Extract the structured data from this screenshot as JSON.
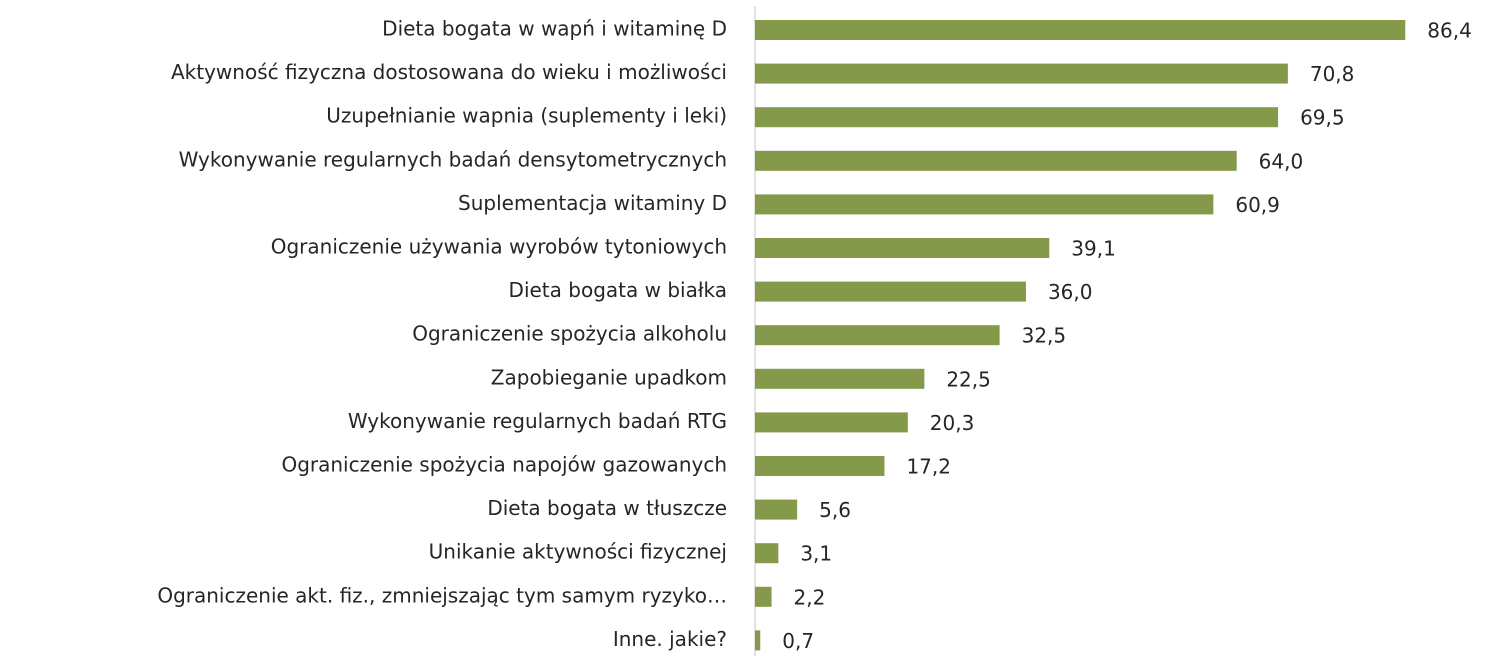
{
  "chart_data": {
    "type": "bar",
    "orientation": "horizontal",
    "color": "#84994a",
    "categories": [
      "Dieta bogata w wapń i witaminę D",
      "Aktywność fizyczna dostosowana do wieku i możliwości",
      "Uzupełnianie wapnia (suplementy i leki)",
      "Wykonywanie regularnych badań densytometrycznych",
      "Suplementacja witaminy D",
      "Ograniczenie używania wyrobów tytoniowych",
      "Dieta bogata w białka",
      "Ograniczenie spożycia alkoholu",
      "Zapobieganie upadkom",
      "Wykonywanie regularnych badań RTG",
      "Ograniczenie spożycia napojów gazowanych",
      "Dieta bogata w tłuszcze",
      "Unikanie aktywności fizycznej",
      "Ograniczenie akt. fiz., zmniejszając tym samym ryzyko…",
      "Inne. jakie?"
    ],
    "values": [
      86.4,
      70.8,
      69.5,
      64.0,
      60.9,
      39.1,
      36.0,
      32.5,
      22.5,
      20.3,
      17.2,
      5.6,
      3.1,
      2.2,
      0.7
    ],
    "value_labels": [
      "86,4",
      "70,8",
      "69,5",
      "64,0",
      "60,9",
      "39,1",
      "36,0",
      "32,5",
      "22,5",
      "20,3",
      "17,2",
      "5,6",
      "3,1",
      "2,2",
      "0,7"
    ],
    "xlim": [
      0,
      95
    ]
  }
}
